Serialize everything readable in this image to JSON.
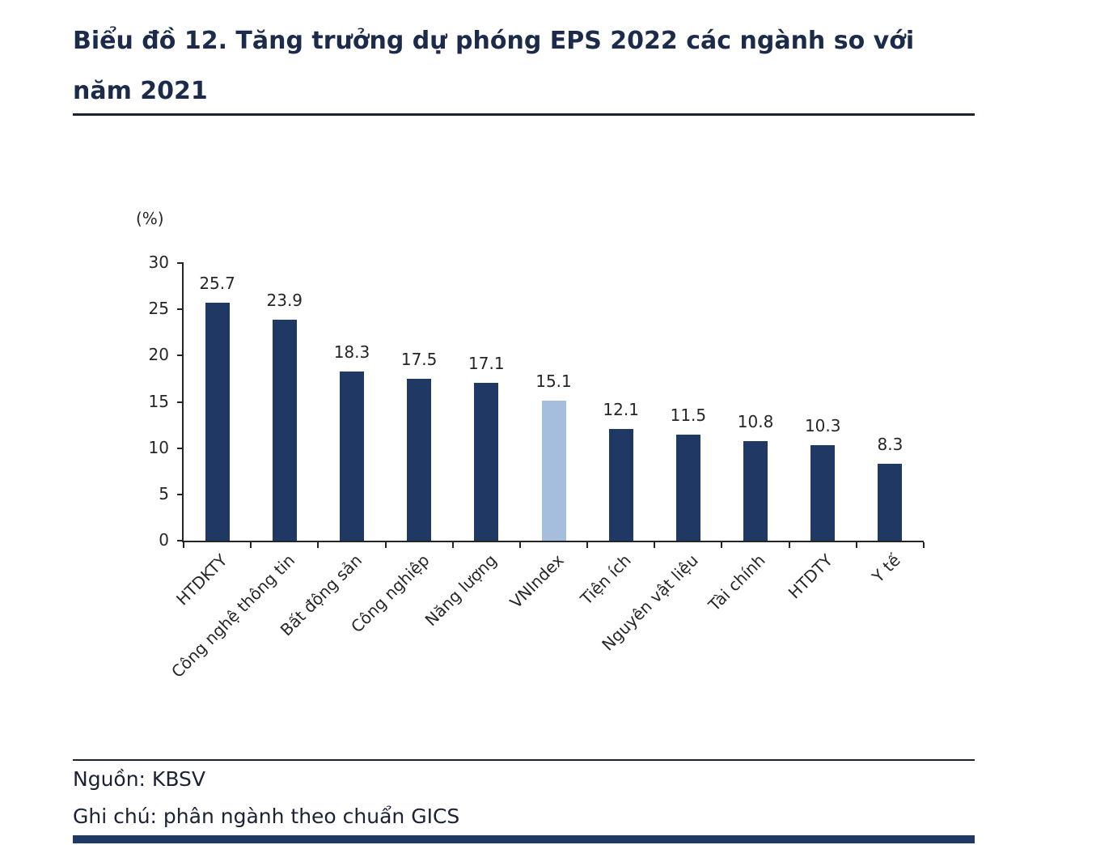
{
  "title": "Biểu đồ 12. Tăng trưởng dự phóng EPS 2022 các ngành so với năm 2021",
  "footer": {
    "source": "Nguồn: KBSV",
    "note": "Ghi chú: phân ngành theo chuẩn GICS"
  },
  "colors": {
    "bar": "#1f3864",
    "highlight": "#a6bedd",
    "axis": "#262626",
    "title_text": "#1c2b4a"
  },
  "chart_data": {
    "type": "bar",
    "title": "Tăng trưởng dự phóng EPS 2022 các ngành so với năm 2021",
    "xlabel": "",
    "ylabel": "(%)",
    "ylim": [
      0,
      30
    ],
    "yticks": [
      0,
      5,
      10,
      15,
      20,
      25,
      30
    ],
    "grid": false,
    "legend_position": "none",
    "categories": [
      "HTDKTY",
      "Công nghệ thông tin",
      "Bất động sản",
      "Công nghiệp",
      "Năng lượng",
      "VNIndex",
      "Tiện ích",
      "Nguyên vật liệu",
      "Tài chính",
      "HTDTY",
      "Y tế"
    ],
    "values": [
      25.7,
      23.9,
      18.3,
      17.5,
      17.1,
      15.1,
      12.1,
      11.5,
      10.8,
      10.3,
      8.3
    ],
    "highlight_category": "VNIndex",
    "bar_color": "#1f3864",
    "highlight_color": "#a6bedd"
  }
}
